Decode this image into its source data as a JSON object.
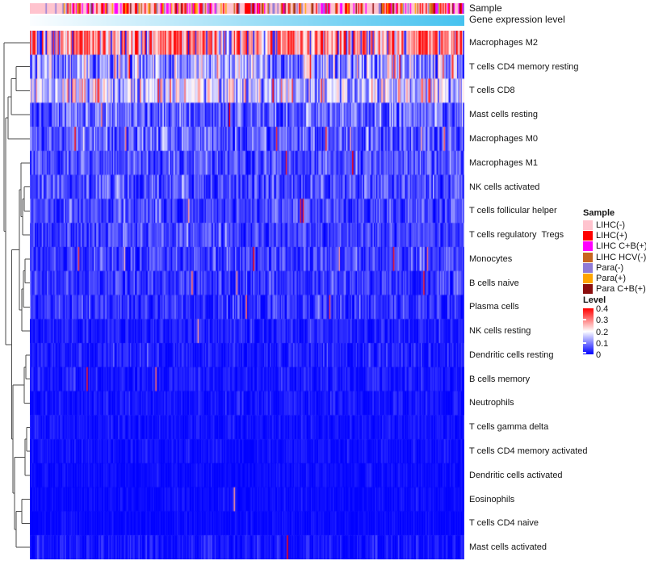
{
  "annotations": {
    "sample_label": "Sample",
    "expression_label": "Gene expression level",
    "expression_gradient": [
      "#FBFDFF",
      "#46C2EF"
    ]
  },
  "legend": {
    "sample_title": "Sample",
    "level_title": "Level",
    "level_ticks": [
      "0.4",
      "0.3",
      "0.2",
      "0.1",
      "0"
    ]
  },
  "chart_data": {
    "type": "heatmap",
    "title": "",
    "xlabel": "",
    "ylabel": "",
    "n_columns": 360,
    "colormap": {
      "min": 0,
      "mid": 0.2,
      "max": 0.4,
      "min_color": "#0000FF",
      "mid_color": "#FFFFFF",
      "max_color": "#FF0000"
    },
    "column_annotation_sorted_by": "Gene expression level (white to cyan, ascending left to right)",
    "sample_categories": [
      {
        "label": "LIHC(-)",
        "color": "#FFC3CE",
        "weight": 0.42
      },
      {
        "label": "LIHC(+)",
        "color": "#FF0000",
        "weight": 0.17
      },
      {
        "label": "LIHC C+B(+)",
        "color": "#FF00FF",
        "weight": 0.12
      },
      {
        "label": "LIHC HCV(-)",
        "color": "#C8651E",
        "weight": 0.05
      },
      {
        "label": "Para(-)",
        "color": "#8F7AD6",
        "weight": 0.1
      },
      {
        "label": "Para(+)",
        "color": "#FFA500",
        "weight": 0.06
      },
      {
        "label": "Para C+B(+)",
        "color": "#8B0E0E",
        "weight": 0.04
      }
    ],
    "rows": [
      {
        "name": "Macrophages M2",
        "mean": 0.3,
        "sd": 0.085,
        "low_prob": 0.1,
        "high_prob": 0.0
      },
      {
        "name": "T cells CD4 memory resting",
        "mean": 0.115,
        "sd": 0.075,
        "low_prob": 0.05,
        "high_prob": 0.03
      },
      {
        "name": "T cells CD8",
        "mean": 0.16,
        "sd": 0.08,
        "low_prob": 0.03,
        "high_prob": 0.04
      },
      {
        "name": "Mast cells resting",
        "mean": 0.075,
        "sd": 0.05,
        "low_prob": 0.0,
        "high_prob": 0.012
      },
      {
        "name": "Macrophages M0",
        "mean": 0.065,
        "sd": 0.05,
        "low_prob": 0.0,
        "high_prob": 0.01
      },
      {
        "name": "Macrophages M1",
        "mean": 0.06,
        "sd": 0.04,
        "low_prob": 0.0,
        "high_prob": 0.006
      },
      {
        "name": "NK cells activated",
        "mean": 0.055,
        "sd": 0.04,
        "low_prob": 0.0,
        "high_prob": 0.006
      },
      {
        "name": "T cells follicular helper",
        "mean": 0.05,
        "sd": 0.038,
        "low_prob": 0.0,
        "high_prob": 0.006
      },
      {
        "name": "T cells regulatory  Tregs",
        "mean": 0.05,
        "sd": 0.035,
        "low_prob": 0.0,
        "high_prob": 0.004
      },
      {
        "name": "Monocytes",
        "mean": 0.042,
        "sd": 0.035,
        "low_prob": 0.0,
        "high_prob": 0.012
      },
      {
        "name": "B cells naive",
        "mean": 0.04,
        "sd": 0.032,
        "low_prob": 0.0,
        "high_prob": 0.006
      },
      {
        "name": "Plasma cells",
        "mean": 0.035,
        "sd": 0.035,
        "low_prob": 0.0,
        "high_prob": 0.008
      },
      {
        "name": "NK cells resting",
        "mean": 0.02,
        "sd": 0.022,
        "low_prob": 0.0,
        "high_prob": 0.003
      },
      {
        "name": "Dendritic cells resting",
        "mean": 0.02,
        "sd": 0.024,
        "low_prob": 0.0,
        "high_prob": 0.004
      },
      {
        "name": "B cells memory",
        "mean": 0.015,
        "sd": 0.02,
        "low_prob": 0.0,
        "high_prob": 0.003
      },
      {
        "name": "Neutrophils",
        "mean": 0.012,
        "sd": 0.017,
        "low_prob": 0.0,
        "high_prob": 0.002
      },
      {
        "name": "T cells gamma delta",
        "mean": 0.01,
        "sd": 0.015,
        "low_prob": 0.0,
        "high_prob": 0.002
      },
      {
        "name": "T cells CD4 memory activated",
        "mean": 0.008,
        "sd": 0.013,
        "low_prob": 0.0,
        "high_prob": 0.002
      },
      {
        "name": "Dendritic cells activated",
        "mean": 0.006,
        "sd": 0.011,
        "low_prob": 0.0,
        "high_prob": 0.001
      },
      {
        "name": "Eosinophils",
        "mean": 0.005,
        "sd": 0.01,
        "low_prob": 0.0,
        "high_prob": 0.001
      },
      {
        "name": "T cells CD4 naive",
        "mean": 0.004,
        "sd": 0.01,
        "low_prob": 0.0,
        "high_prob": 0.001
      },
      {
        "name": "Mast cells activated",
        "mean": 0.01,
        "sd": 0.02,
        "low_prob": 0.0,
        "high_prob": 0.002
      }
    ],
    "dendrogram": {
      "x": 5,
      "c": [
        0,
        {
          "x": 7,
          "c": [
            {
              "x": 10,
              "c": [
                {
                  "x": 14,
                  "c": [
                    {
                      "x": 20,
                      "c": [
                        1,
                        2
                      ]
                    },
                    3
                  ]
                },
                4
              ]
            },
            {
              "x": 14.5,
              "c": [
                {
                  "x": 24,
                  "c": [
                    {
                      "x": 26,
                      "c": [
                        5,
                        {
                          "x": 28,
                          "c": [
                            {
                              "x": 30,
                              "c": [
                                6,
                                7
                              ]
                            },
                            8
                          ]
                        }
                      ]
                    },
                    {
                      "x": 27,
                      "c": [
                        {
                          "x": 29,
                          "c": [
                            {
                              "x": 31,
                              "c": [
                                9,
                                10
                              ]
                            },
                            11
                          ]
                        },
                        12
                      ]
                    }
                  ]
                },
                {
                  "x": 16,
                  "c": [
                    {
                      "x": 30,
                      "c": [
                        {
                          "x": 32,
                          "c": [
                            13,
                            14
                          ]
                        },
                        15
                      ]
                    },
                    {
                      "x": 18,
                      "c": [
                        {
                          "x": 31,
                          "c": [
                            {
                              "x": 33,
                              "c": [
                                16,
                                17
                              ]
                            },
                            18
                          ]
                        },
                        {
                          "x": 20,
                          "c": [
                            {
                              "x": 27,
                              "c": [
                                19,
                                20
                              ]
                            },
                            21
                          ]
                        }
                      ]
                    }
                  ]
                }
              ]
            }
          ]
        }
      ]
    }
  }
}
